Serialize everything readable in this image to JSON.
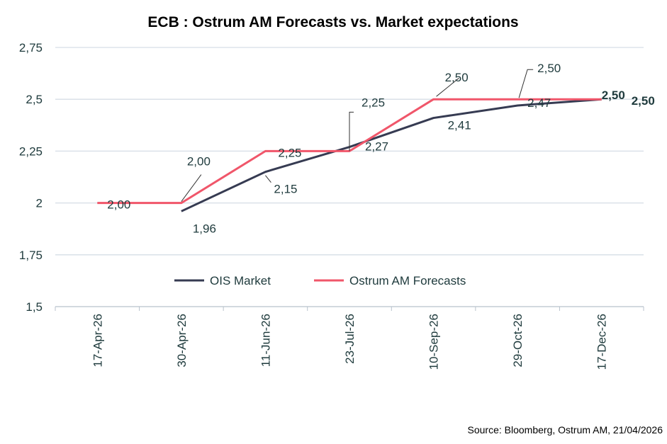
{
  "chart_data": {
    "type": "line",
    "title": "ECB :  Ostrum AM Forecasts vs. Market expectations",
    "categories": [
      "17-Apr-26",
      "30-Apr-26",
      "11-Jun-26",
      "23-Jul-26",
      "10-Sep-26",
      "29-Oct-26",
      "17-Dec-26"
    ],
    "ylim": [
      1.5,
      2.75
    ],
    "yticks": [
      "1,5",
      "1,75",
      "2",
      "2,25",
      "2,5",
      "2,75"
    ],
    "grid": true,
    "legend_position": "center",
    "series": [
      {
        "name": "OIS Market",
        "color": "#363b52",
        "values": [
          null,
          1.96,
          2.15,
          2.27,
          2.41,
          2.47,
          2.5
        ],
        "labels": [
          null,
          "1,96",
          "2,15",
          "2,27",
          "2,41",
          "2,47",
          "2,50"
        ]
      },
      {
        "name": "Ostrum AM Forecasts",
        "color": "#f0566a",
        "values": [
          2.0,
          2.0,
          2.25,
          2.25,
          2.5,
          2.5,
          2.5
        ],
        "labels": [
          "2,00",
          "2,00",
          "2,25",
          "2,25",
          "2,50",
          "2,50",
          "2,50"
        ]
      }
    ],
    "source": "Source: Bloomberg, Ostrum AM, 21/04/2026"
  }
}
